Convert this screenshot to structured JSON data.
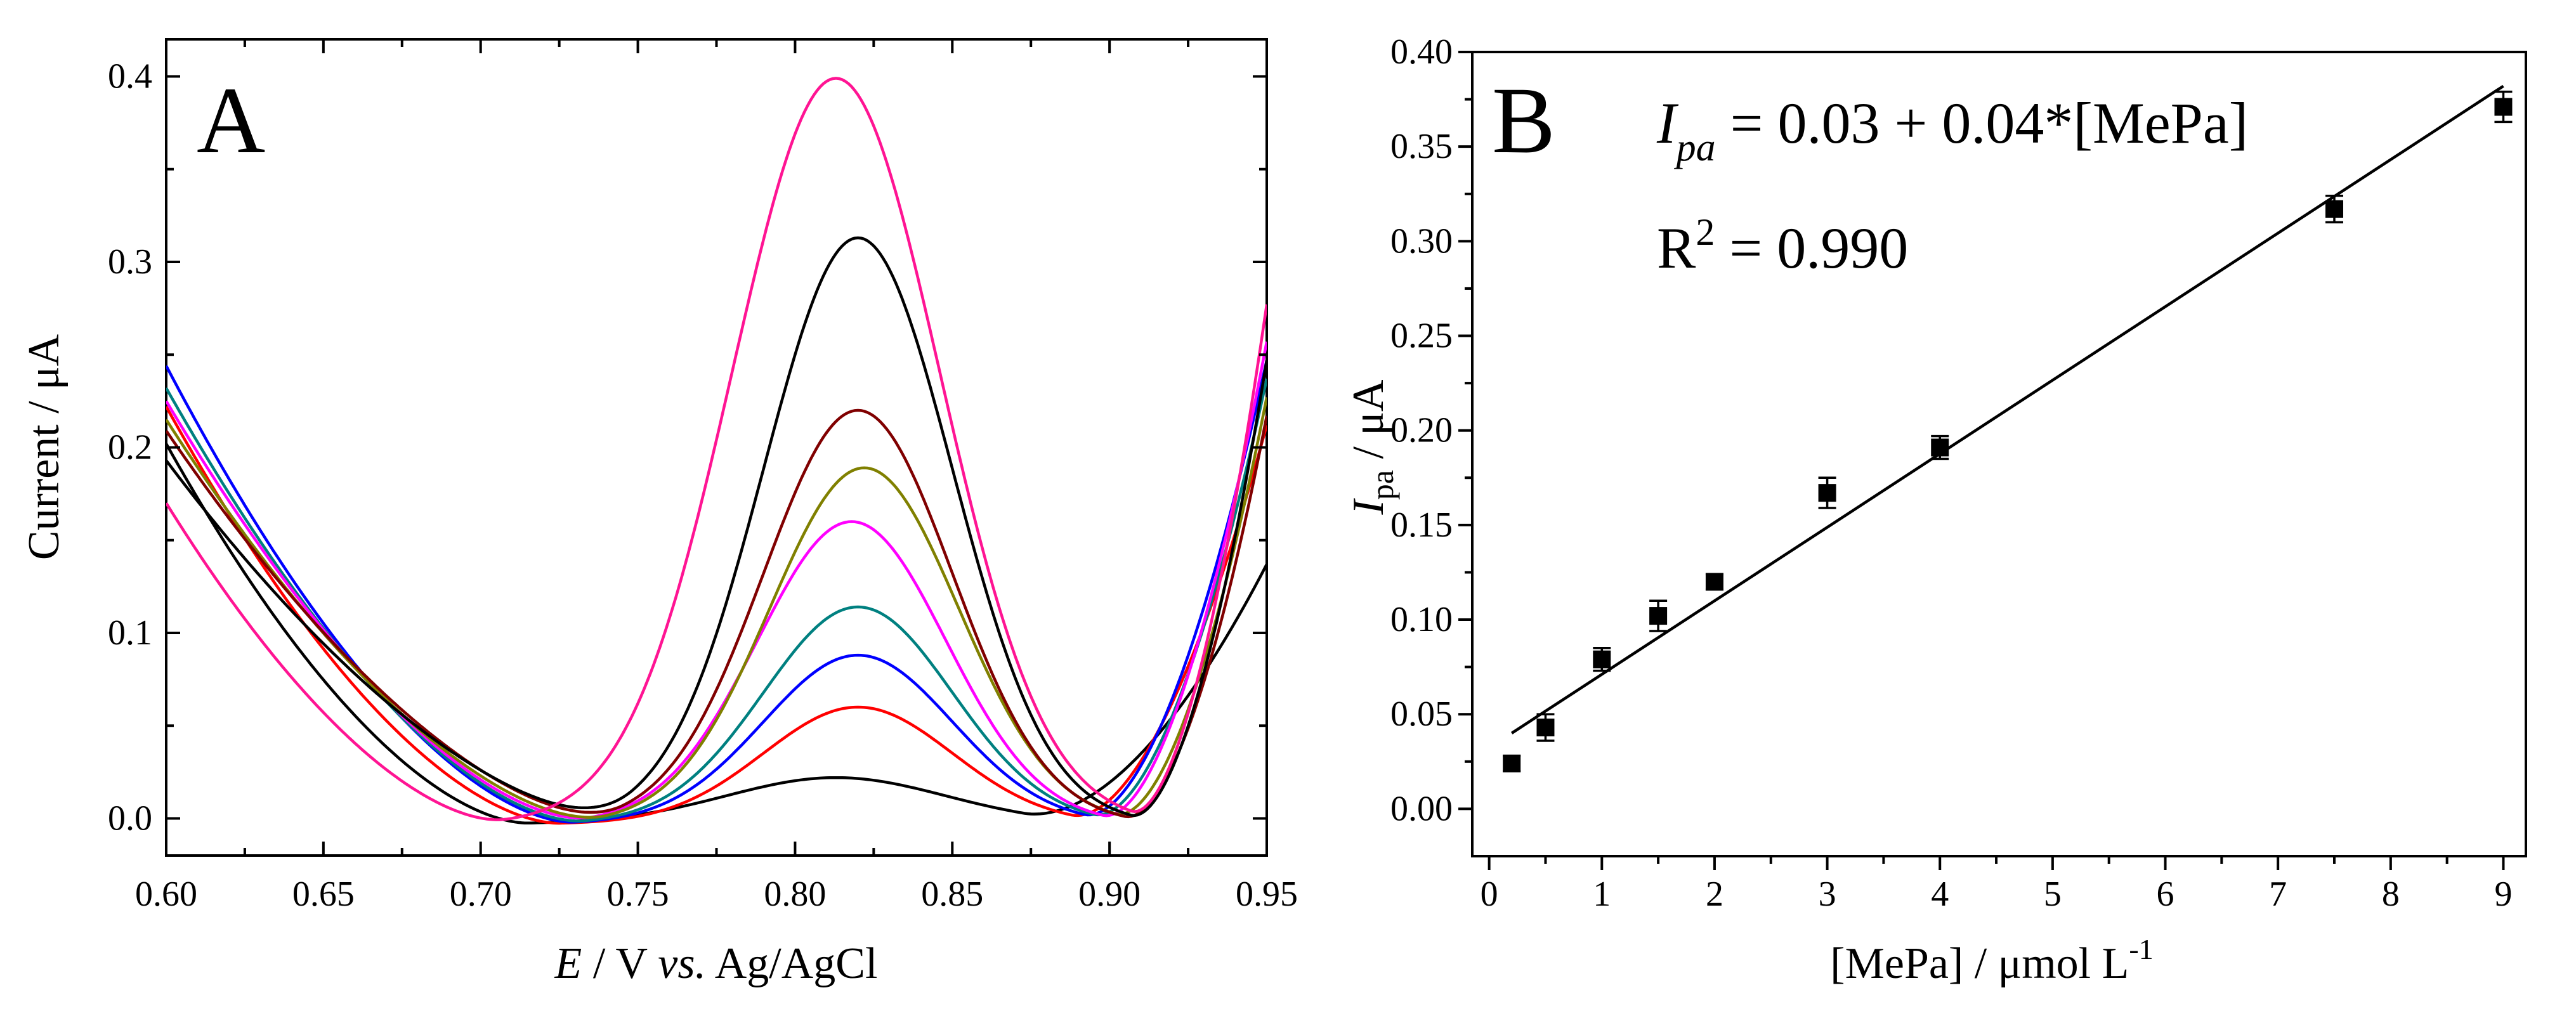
{
  "figure": {
    "panel_a_letter": "A",
    "panel_b_letter": "B"
  },
  "chart_data": [
    {
      "type": "line",
      "panel": "A",
      "ylabel": "Current / μA",
      "xlabel_italic": "E",
      "xlabel_middle": " / V ",
      "xlabel_vs": "vs.",
      "xlabel_end": " Ag/AgCl",
      "xlim": [
        0.6,
        0.95
      ],
      "ylim": [
        -0.02,
        0.42
      ],
      "xticks": [
        0.6,
        0.65,
        0.7,
        0.75,
        0.8,
        0.85,
        0.9,
        0.95
      ],
      "xtick_labels": [
        "0.60",
        "0.65",
        "0.70",
        "0.75",
        "0.80",
        "0.85",
        "0.90",
        "0.95"
      ],
      "yticks": [
        0.0,
        0.1,
        0.2,
        0.3,
        0.4
      ],
      "ytick_labels": [
        "0.0",
        "0.1",
        "0.2",
        "0.3",
        "0.4"
      ],
      "series": [
        {
          "name": "c1",
          "color": "#000000",
          "peak": 0.025,
          "peak_x": 0.813,
          "left": 0.205,
          "right": 0.14,
          "min1_x": 0.715,
          "min2_x": 0.873,
          "sigma": 0.035
        },
        {
          "name": "c2",
          "color": "#ff0000",
          "peak": 0.063,
          "peak_x": 0.82,
          "left": 0.225,
          "right": 0.215,
          "min1_x": 0.725,
          "min2_x": 0.888,
          "sigma": 0.03
        },
        {
          "name": "c3",
          "color": "#0000ff",
          "peak": 0.091,
          "peak_x": 0.82,
          "left": 0.247,
          "right": 0.25,
          "min1_x": 0.73,
          "min2_x": 0.892,
          "sigma": 0.03
        },
        {
          "name": "c4",
          "color": "#008080",
          "peak": 0.117,
          "peak_x": 0.82,
          "left": 0.235,
          "right": 0.24,
          "min1_x": 0.733,
          "min2_x": 0.895,
          "sigma": 0.03
        },
        {
          "name": "c5",
          "color": "#ff00ff",
          "peak": 0.163,
          "peak_x": 0.818,
          "left": 0.228,
          "right": 0.26,
          "min1_x": 0.736,
          "min2_x": 0.898,
          "sigma": 0.03
        },
        {
          "name": "c6",
          "color": "#808000",
          "peak": 0.192,
          "peak_x": 0.822,
          "left": 0.218,
          "right": 0.23,
          "min1_x": 0.74,
          "min2_x": 0.902,
          "sigma": 0.03
        },
        {
          "name": "c7",
          "color": "#800000",
          "peak": 0.223,
          "peak_x": 0.82,
          "left": 0.212,
          "right": 0.22,
          "min1_x": 0.745,
          "min2_x": 0.905,
          "sigma": 0.03
        },
        {
          "name": "c8",
          "color": "#000000",
          "peak": 0.316,
          "peak_x": 0.82,
          "left": 0.196,
          "right": 0.25,
          "min1_x": 0.748,
          "min2_x": 0.907,
          "sigma": 0.03
        },
        {
          "name": "c9",
          "color": "#ff1493",
          "peak": 0.402,
          "peak_x": 0.813,
          "left": 0.173,
          "right": 0.28,
          "min1_x": 0.708,
          "min2_x": 0.907,
          "sigma": 0.033
        }
      ]
    },
    {
      "type": "scatter",
      "panel": "B",
      "ylabel_italic": "I",
      "ylabel_sub": "pa",
      "ylabel_end": " / μA",
      "xlabel_main": "[MePa] / μmol L",
      "xlabel_sup": "-1",
      "xlim": [
        -0.15,
        9.2
      ],
      "ylim": [
        -0.025,
        0.4
      ],
      "xticks": [
        0,
        1,
        2,
        3,
        4,
        5,
        6,
        7,
        8,
        9
      ],
      "xtick_labels": [
        "0",
        "1",
        "2",
        "3",
        "4",
        "5",
        "6",
        "7",
        "8",
        "9"
      ],
      "yticks": [
        0.0,
        0.05,
        0.1,
        0.15,
        0.2,
        0.25,
        0.3,
        0.35,
        0.4
      ],
      "ytick_labels": [
        "0.00",
        "0.05",
        "0.10",
        "0.15",
        "0.20",
        "0.25",
        "0.30",
        "0.35",
        "0.40"
      ],
      "points": [
        {
          "x": 0.2,
          "y": 0.024,
          "err": 0.004
        },
        {
          "x": 0.5,
          "y": 0.043,
          "err": 0.007
        },
        {
          "x": 1.0,
          "y": 0.079,
          "err": 0.006
        },
        {
          "x": 1.5,
          "y": 0.102,
          "err": 0.008
        },
        {
          "x": 2.0,
          "y": 0.12,
          "err": 0.004
        },
        {
          "x": 3.0,
          "y": 0.167,
          "err": 0.008
        },
        {
          "x": 4.0,
          "y": 0.191,
          "err": 0.006
        },
        {
          "x": 7.5,
          "y": 0.317,
          "err": 0.007
        },
        {
          "x": 9.0,
          "y": 0.371,
          "err": 0.008
        }
      ],
      "fit": {
        "x_start": 0.2,
        "x_end": 9.0,
        "y_start": 0.04,
        "y_end": 0.382
      },
      "equation": {
        "i_label": "I",
        "i_sub": "pa",
        "rhs": " = 0.03 + 0.04*[MePa]",
        "r_label": "R",
        "r_sup": "2",
        "r_rhs": " = 0.990"
      }
    }
  ]
}
